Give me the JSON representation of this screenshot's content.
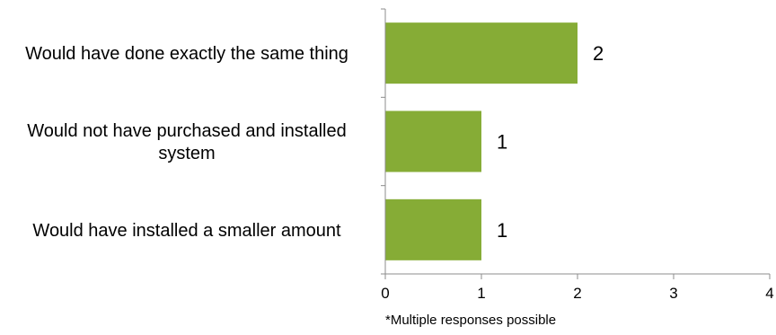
{
  "chart_data": {
    "type": "bar",
    "orientation": "horizontal",
    "categories": [
      "Would have done exactly the same thing",
      "Would not have purchased and installed system",
      "Would have installed a smaller amount"
    ],
    "category_display_lines": [
      [
        "Would have done exactly the same thing"
      ],
      [
        "Would not have purchased and installed",
        "system"
      ],
      [
        "Would have installed a smaller amount"
      ]
    ],
    "values": [
      2,
      1,
      1
    ],
    "data_labels": [
      "2",
      "1",
      "1"
    ],
    "xlim": [
      0,
      4
    ],
    "x_ticks": [
      0,
      1,
      2,
      3,
      4
    ],
    "x_tick_labels": [
      "0",
      "1",
      "2",
      "3",
      "4"
    ],
    "grid": false,
    "legend": "none",
    "bar_color": "#86AC36",
    "axis_color": "#8C8C8C",
    "footnote": "*Multiple responses possible"
  }
}
